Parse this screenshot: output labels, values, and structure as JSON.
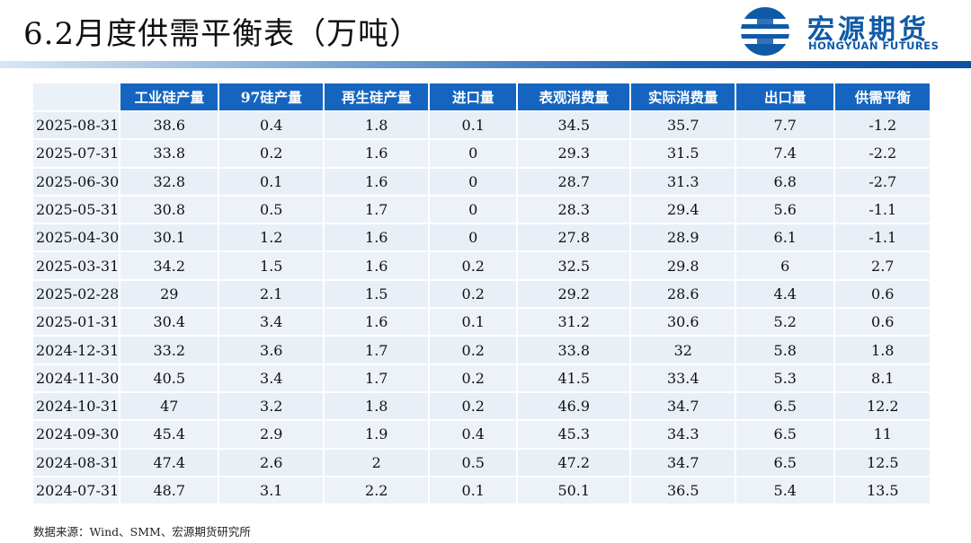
{
  "title": "6.2月度供需平衡表（万吨）",
  "logo": {
    "cn": "宏源期货",
    "en": "HONGYUAN FUTURES",
    "icon": "hongyuan-logo-icon",
    "color": "#0f5aa7"
  },
  "colors": {
    "header_bg": "#1565c0",
    "row_bg": "#e9eff6"
  },
  "table": {
    "headers": [
      "",
      "工业硅产量",
      "97硅产量",
      "再生硅产量",
      "进口量",
      "表观消费量",
      "实际消费量",
      "出口量",
      "供需平衡"
    ],
    "rows": [
      [
        "2025-08-31",
        "38.6",
        "0.4",
        "1.8",
        "0.1",
        "34.5",
        "35.7",
        "7.7",
        "-1.2"
      ],
      [
        "2025-07-31",
        "33.8",
        "0.2",
        "1.6",
        "0",
        "29.3",
        "31.5",
        "7.4",
        "-2.2"
      ],
      [
        "2025-06-30",
        "32.8",
        "0.1",
        "1.6",
        "0",
        "28.7",
        "31.3",
        "6.8",
        "-2.7"
      ],
      [
        "2025-05-31",
        "30.8",
        "0.5",
        "1.7",
        "0",
        "28.3",
        "29.4",
        "5.6",
        "-1.1"
      ],
      [
        "2025-04-30",
        "30.1",
        "1.2",
        "1.6",
        "0",
        "27.8",
        "28.9",
        "6.1",
        "-1.1"
      ],
      [
        "2025-03-31",
        "34.2",
        "1.5",
        "1.6",
        "0.2",
        "32.5",
        "29.8",
        "6",
        "2.7"
      ],
      [
        "2025-02-28",
        "29",
        "2.1",
        "1.5",
        "0.2",
        "29.2",
        "28.6",
        "4.4",
        "0.6"
      ],
      [
        "2025-01-31",
        "30.4",
        "3.4",
        "1.6",
        "0.1",
        "31.2",
        "30.6",
        "5.2",
        "0.6"
      ],
      [
        "2024-12-31",
        "33.2",
        "3.6",
        "1.7",
        "0.2",
        "33.8",
        "32",
        "5.8",
        "1.8"
      ],
      [
        "2024-11-30",
        "40.5",
        "3.4",
        "1.7",
        "0.2",
        "41.5",
        "33.4",
        "5.3",
        "8.1"
      ],
      [
        "2024-10-31",
        "47",
        "3.2",
        "1.8",
        "0.2",
        "46.9",
        "34.7",
        "6.5",
        "12.2"
      ],
      [
        "2024-09-30",
        "45.4",
        "2.9",
        "1.9",
        "0.4",
        "45.3",
        "34.3",
        "6.5",
        "11"
      ],
      [
        "2024-08-31",
        "47.4",
        "2.6",
        "2",
        "0.5",
        "47.2",
        "34.7",
        "6.5",
        "12.5"
      ],
      [
        "2024-07-31",
        "48.7",
        "3.1",
        "2.2",
        "0.1",
        "50.1",
        "36.5",
        "5.4",
        "13.5"
      ]
    ]
  },
  "source": "数据来源：Wind、SMM、宏源期货研究所"
}
